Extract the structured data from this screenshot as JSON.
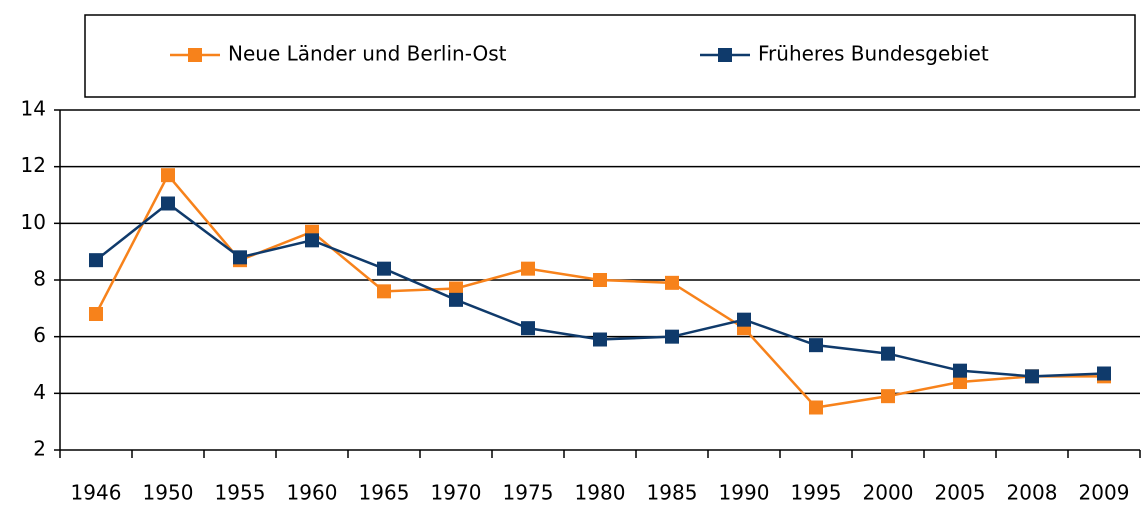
{
  "chart_data": {
    "type": "line",
    "categories": [
      "1946",
      "1950",
      "1955",
      "1960",
      "1965",
      "1970",
      "1975",
      "1980",
      "1985",
      "1990",
      "1995",
      "2000",
      "2005",
      "2008",
      "2009"
    ],
    "series": [
      {
        "name": "Neue Länder und Berlin-Ost",
        "color": "#f7821b",
        "values": [
          6.8,
          11.7,
          8.7,
          9.7,
          7.6,
          7.7,
          8.4,
          8.0,
          7.9,
          6.3,
          3.5,
          3.9,
          4.4,
          4.6,
          4.6
        ]
      },
      {
        "name": "Früheres Bundesgebiet",
        "color": "#0f3a6b",
        "values": [
          8.7,
          10.7,
          8.8,
          9.4,
          8.4,
          7.3,
          6.3,
          5.9,
          6.0,
          6.6,
          5.7,
          5.4,
          4.8,
          4.6,
          4.7
        ]
      }
    ],
    "ylim": [
      2,
      14
    ],
    "yticks": [
      2,
      4,
      6,
      8,
      10,
      12,
      14
    ],
    "grid": true,
    "legend": "top"
  }
}
